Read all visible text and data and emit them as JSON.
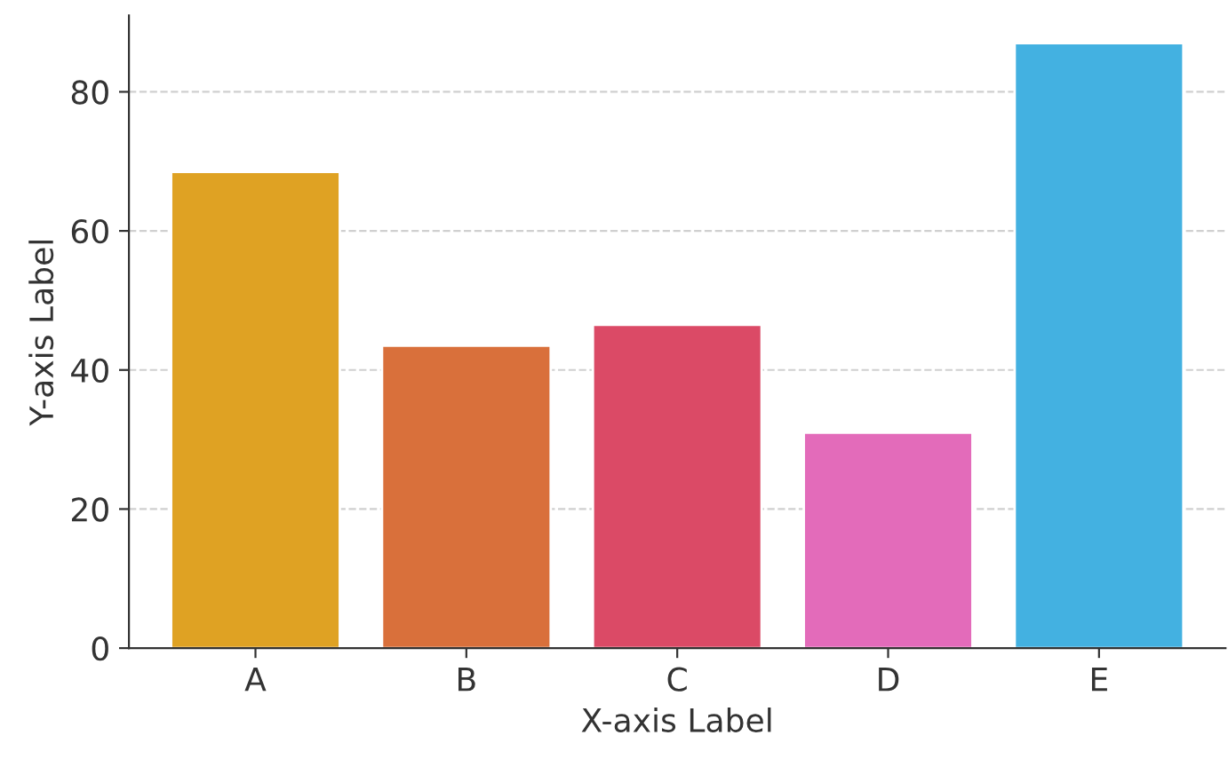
{
  "chart_data": {
    "type": "bar",
    "xlabel": "X-axis Label",
    "ylabel": "Y-axis Label",
    "categories": [
      "A",
      "B",
      "C",
      "D",
      "E"
    ],
    "values": [
      68.5,
      43.5,
      46.5,
      31,
      87
    ],
    "colors": [
      "#dfa223",
      "#d9703b",
      "#db4a66",
      "#e36bba",
      "#43b1e1"
    ],
    "ylim": [
      0,
      91
    ],
    "yticks": [
      0,
      20,
      40,
      60,
      80
    ],
    "grid": "y"
  }
}
